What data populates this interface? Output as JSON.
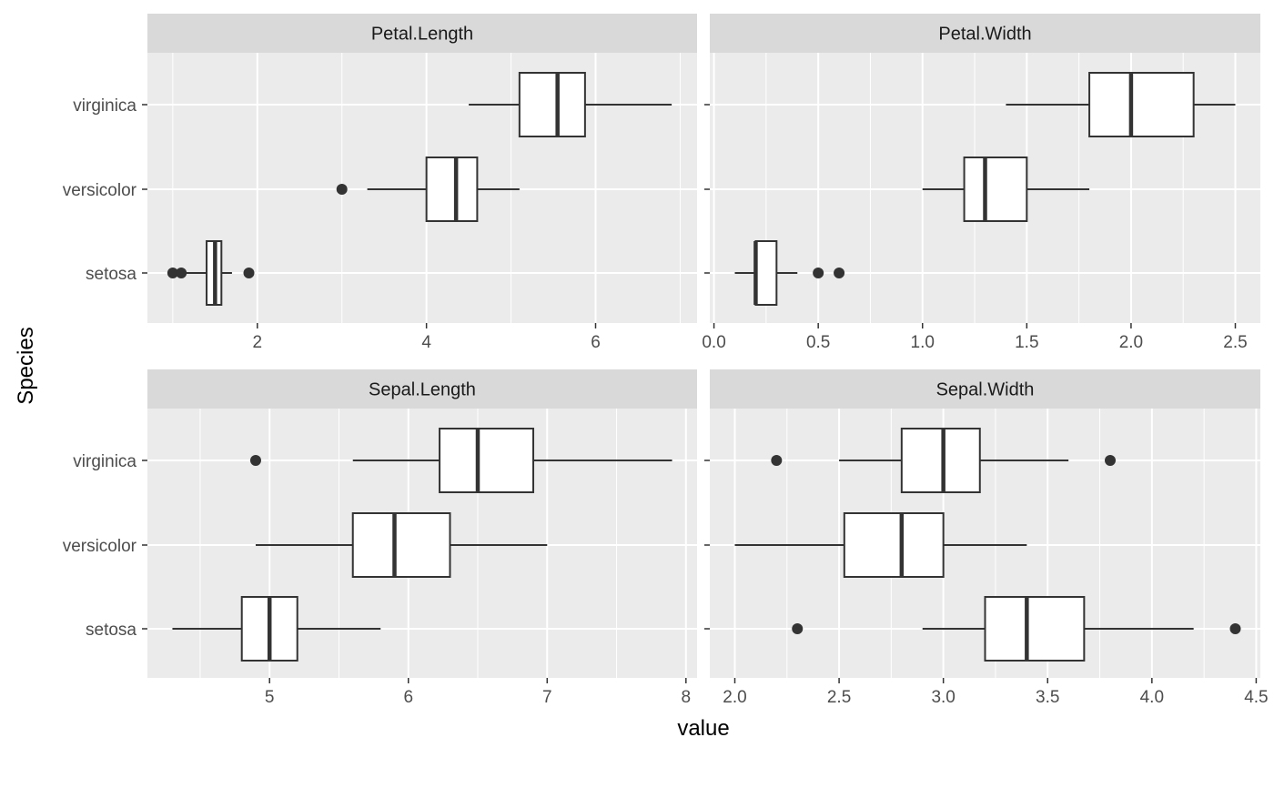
{
  "chart_data": {
    "type": "boxplot",
    "orientation": "horizontal",
    "xlabel": "value",
    "ylabel": "Species",
    "categories": [
      "setosa",
      "versicolor",
      "virginica"
    ],
    "colors": {
      "panel_bg": "#ebebeb",
      "strip_bg": "#d9d9d9",
      "grid": "#ffffff",
      "box_line": "#333333",
      "box_fill": "#ffffff"
    },
    "panels": [
      {
        "title": "Petal.Length",
        "xlim": [
          0.7,
          7.2
        ],
        "ticks": [
          2,
          4,
          6
        ],
        "tick_labels": [
          "2",
          "4",
          "6"
        ],
        "boxes": [
          {
            "species": "setosa",
            "min": 1.1,
            "q1": 1.4,
            "median": 1.5,
            "q3": 1.575,
            "max": 1.7,
            "outliers": [
              1.0,
              1.1,
              1.9
            ]
          },
          {
            "species": "versicolor",
            "min": 3.3,
            "q1": 4.0,
            "median": 4.35,
            "q3": 4.6,
            "max": 5.1,
            "outliers": [
              3.0
            ]
          },
          {
            "species": "virginica",
            "min": 4.5,
            "q1": 5.1,
            "median": 5.55,
            "q3": 5.875,
            "max": 6.9,
            "outliers": []
          }
        ]
      },
      {
        "title": "Petal.Width",
        "xlim": [
          -0.02,
          2.62
        ],
        "ticks": [
          0.0,
          0.5,
          1.0,
          1.5,
          2.0,
          2.5
        ],
        "tick_labels": [
          "0.0",
          "0.5",
          "1.0",
          "1.5",
          "2.0",
          "2.5"
        ],
        "boxes": [
          {
            "species": "setosa",
            "min": 0.1,
            "q1": 0.2,
            "median": 0.2,
            "q3": 0.3,
            "max": 0.4,
            "outliers": [
              0.5,
              0.6
            ]
          },
          {
            "species": "versicolor",
            "min": 1.0,
            "q1": 1.2,
            "median": 1.3,
            "q3": 1.5,
            "max": 1.8,
            "outliers": []
          },
          {
            "species": "virginica",
            "min": 1.4,
            "q1": 1.8,
            "median": 2.0,
            "q3": 2.3,
            "max": 2.5,
            "outliers": []
          }
        ]
      },
      {
        "title": "Sepal.Length",
        "xlim": [
          4.12,
          8.08
        ],
        "ticks": [
          5,
          6,
          7,
          8
        ],
        "tick_labels": [
          "5",
          "6",
          "7",
          "8"
        ],
        "boxes": [
          {
            "species": "setosa",
            "min": 4.3,
            "q1": 4.8,
            "median": 5.0,
            "q3": 5.2,
            "max": 5.8,
            "outliers": []
          },
          {
            "species": "versicolor",
            "min": 4.9,
            "q1": 5.6,
            "median": 5.9,
            "q3": 6.3,
            "max": 7.0,
            "outliers": []
          },
          {
            "species": "virginica",
            "min": 5.6,
            "q1": 6.225,
            "median": 6.5,
            "q3": 6.9,
            "max": 7.9,
            "outliers": [
              4.9
            ]
          }
        ]
      },
      {
        "title": "Sepal.Width",
        "xlim": [
          1.88,
          4.52
        ],
        "ticks": [
          2.0,
          2.5,
          3.0,
          3.5,
          4.0,
          4.5
        ],
        "tick_labels": [
          "2.0",
          "2.5",
          "3.0",
          "3.5",
          "4.0",
          "4.5"
        ],
        "boxes": [
          {
            "species": "setosa",
            "min": 2.9,
            "q1": 3.2,
            "median": 3.4,
            "q3": 3.675,
            "max": 4.2,
            "outliers": [
              2.3,
              4.4
            ]
          },
          {
            "species": "versicolor",
            "min": 2.0,
            "q1": 2.525,
            "median": 2.8,
            "q3": 3.0,
            "max": 3.4,
            "outliers": []
          },
          {
            "species": "virginica",
            "min": 2.5,
            "q1": 2.8,
            "median": 3.0,
            "q3": 3.175,
            "max": 3.6,
            "outliers": [
              2.2,
              3.8
            ]
          }
        ]
      }
    ]
  }
}
